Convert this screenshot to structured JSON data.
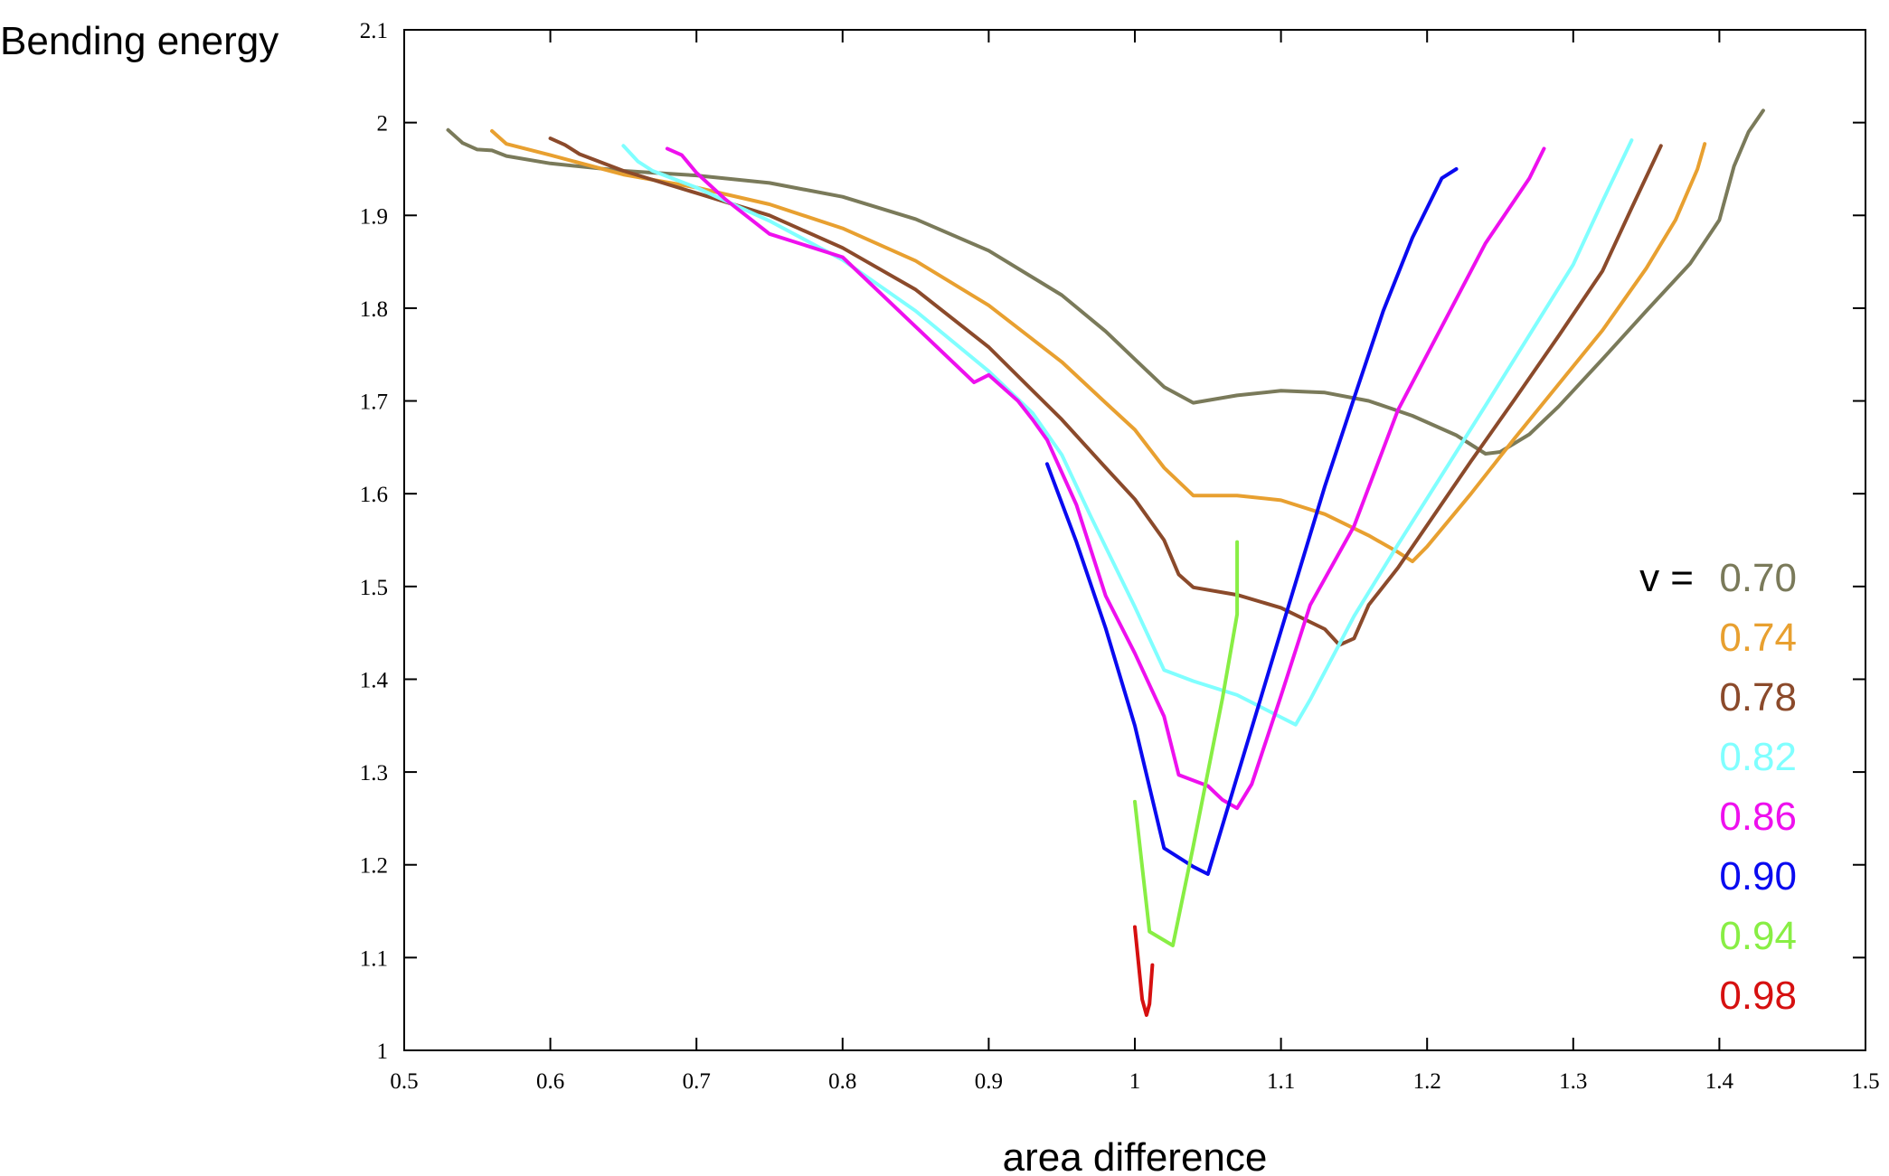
{
  "chart_data": {
    "type": "line",
    "title": "",
    "xlabel": "area difference",
    "ylabel": "Bending energy",
    "xlim": [
      0.5,
      1.5
    ],
    "ylim": [
      1.0,
      2.1
    ],
    "x_ticks": [
      "0.5",
      "0.6",
      "0.7",
      "0.8",
      "0.9",
      "1",
      "1.1",
      "1.2",
      "1.3",
      "1.4",
      "1.5"
    ],
    "y_ticks": [
      "1",
      "1.1",
      "1.2",
      "1.3",
      "1.4",
      "1.5",
      "1.6",
      "1.7",
      "1.8",
      "1.9",
      "2",
      "2.1"
    ],
    "grid": false,
    "legend": {
      "placement": "right",
      "prefix": "v =",
      "entries": [
        "0.70",
        "0.74",
        "0.78",
        "0.82",
        "0.86",
        "0.90",
        "0.94",
        "0.98"
      ]
    },
    "series": [
      {
        "name": "0.70",
        "color": "#7a7a5a",
        "points": [
          [
            0.53,
            1.992
          ],
          [
            0.54,
            1.978
          ],
          [
            0.55,
            1.971
          ],
          [
            0.56,
            1.97
          ],
          [
            0.57,
            1.964
          ],
          [
            0.6,
            1.956
          ],
          [
            0.65,
            1.948
          ],
          [
            0.7,
            1.943
          ],
          [
            0.75,
            1.935
          ],
          [
            0.8,
            1.92
          ],
          [
            0.85,
            1.896
          ],
          [
            0.9,
            1.862
          ],
          [
            0.95,
            1.814
          ],
          [
            0.98,
            1.775
          ],
          [
            1.0,
            1.745
          ],
          [
            1.02,
            1.715
          ],
          [
            1.04,
            1.698
          ],
          [
            1.07,
            1.706
          ],
          [
            1.1,
            1.711
          ],
          [
            1.13,
            1.709
          ],
          [
            1.16,
            1.7
          ],
          [
            1.19,
            1.684
          ],
          [
            1.22,
            1.663
          ],
          [
            1.24,
            1.643
          ],
          [
            1.25,
            1.645
          ],
          [
            1.27,
            1.664
          ],
          [
            1.29,
            1.694
          ],
          [
            1.32,
            1.745
          ],
          [
            1.35,
            1.797
          ],
          [
            1.38,
            1.848
          ],
          [
            1.4,
            1.895
          ],
          [
            1.41,
            1.953
          ],
          [
            1.42,
            1.99
          ],
          [
            1.43,
            2.013
          ]
        ]
      },
      {
        "name": "0.74",
        "color": "#e8a030",
        "points": [
          [
            0.56,
            1.991
          ],
          [
            0.57,
            1.977
          ],
          [
            0.6,
            1.965
          ],
          [
            0.65,
            1.944
          ],
          [
            0.7,
            1.93
          ],
          [
            0.75,
            1.912
          ],
          [
            0.8,
            1.886
          ],
          [
            0.85,
            1.851
          ],
          [
            0.9,
            1.803
          ],
          [
            0.95,
            1.742
          ],
          [
            0.98,
            1.698
          ],
          [
            1.0,
            1.669
          ],
          [
            1.02,
            1.628
          ],
          [
            1.04,
            1.598
          ],
          [
            1.07,
            1.598
          ],
          [
            1.1,
            1.593
          ],
          [
            1.13,
            1.578
          ],
          [
            1.16,
            1.555
          ],
          [
            1.18,
            1.537
          ],
          [
            1.19,
            1.527
          ],
          [
            1.2,
            1.543
          ],
          [
            1.23,
            1.6
          ],
          [
            1.26,
            1.66
          ],
          [
            1.29,
            1.718
          ],
          [
            1.32,
            1.776
          ],
          [
            1.35,
            1.843
          ],
          [
            1.37,
            1.895
          ],
          [
            1.385,
            1.95
          ],
          [
            1.39,
            1.977
          ]
        ]
      },
      {
        "name": "0.78",
        "color": "#8b4a2b",
        "points": [
          [
            0.6,
            1.983
          ],
          [
            0.61,
            1.976
          ],
          [
            0.62,
            1.966
          ],
          [
            0.65,
            1.948
          ],
          [
            0.7,
            1.924
          ],
          [
            0.75,
            1.9
          ],
          [
            0.8,
            1.865
          ],
          [
            0.85,
            1.82
          ],
          [
            0.9,
            1.758
          ],
          [
            0.95,
            1.68
          ],
          [
            0.98,
            1.628
          ],
          [
            1.0,
            1.594
          ],
          [
            1.02,
            1.55
          ],
          [
            1.03,
            1.513
          ],
          [
            1.04,
            1.499
          ],
          [
            1.07,
            1.491
          ],
          [
            1.1,
            1.477
          ],
          [
            1.13,
            1.454
          ],
          [
            1.14,
            1.437
          ],
          [
            1.15,
            1.444
          ],
          [
            1.16,
            1.48
          ],
          [
            1.18,
            1.52
          ],
          [
            1.2,
            1.566
          ],
          [
            1.23,
            1.635
          ],
          [
            1.26,
            1.702
          ],
          [
            1.29,
            1.77
          ],
          [
            1.32,
            1.84
          ],
          [
            1.34,
            1.908
          ],
          [
            1.36,
            1.975
          ]
        ]
      },
      {
        "name": "0.82",
        "color": "#80ffff",
        "points": [
          [
            0.65,
            1.975
          ],
          [
            0.66,
            1.958
          ],
          [
            0.67,
            1.948
          ],
          [
            0.7,
            1.93
          ],
          [
            0.75,
            1.894
          ],
          [
            0.8,
            1.852
          ],
          [
            0.85,
            1.797
          ],
          [
            0.9,
            1.732
          ],
          [
            0.93,
            1.687
          ],
          [
            0.95,
            1.642
          ],
          [
            0.97,
            1.575
          ],
          [
            1.0,
            1.478
          ],
          [
            1.02,
            1.41
          ],
          [
            1.04,
            1.398
          ],
          [
            1.07,
            1.383
          ],
          [
            1.1,
            1.359
          ],
          [
            1.11,
            1.351
          ],
          [
            1.12,
            1.378
          ],
          [
            1.15,
            1.468
          ],
          [
            1.18,
            1.545
          ],
          [
            1.21,
            1.62
          ],
          [
            1.24,
            1.695
          ],
          [
            1.27,
            1.771
          ],
          [
            1.3,
            1.847
          ],
          [
            1.32,
            1.915
          ],
          [
            1.34,
            1.981
          ]
        ]
      },
      {
        "name": "0.86",
        "color": "#ee10ee",
        "points": [
          [
            0.68,
            1.972
          ],
          [
            0.69,
            1.965
          ],
          [
            0.7,
            1.946
          ],
          [
            0.72,
            1.917
          ],
          [
            0.75,
            1.88
          ],
          [
            0.8,
            1.855
          ],
          [
            0.85,
            1.78
          ],
          [
            0.89,
            1.72
          ],
          [
            0.9,
            1.728
          ],
          [
            0.92,
            1.7
          ],
          [
            0.93,
            1.68
          ],
          [
            0.94,
            1.658
          ],
          [
            0.96,
            1.588
          ],
          [
            0.98,
            1.49
          ],
          [
            1.0,
            1.428
          ],
          [
            1.02,
            1.36
          ],
          [
            1.03,
            1.297
          ],
          [
            1.05,
            1.285
          ],
          [
            1.06,
            1.27
          ],
          [
            1.07,
            1.261
          ],
          [
            1.08,
            1.287
          ],
          [
            1.1,
            1.382
          ],
          [
            1.12,
            1.48
          ],
          [
            1.15,
            1.565
          ],
          [
            1.18,
            1.69
          ],
          [
            1.21,
            1.78
          ],
          [
            1.24,
            1.87
          ],
          [
            1.27,
            1.94
          ],
          [
            1.28,
            1.972
          ]
        ]
      },
      {
        "name": "0.90",
        "color": "#0a0af0",
        "points": [
          [
            0.94,
            1.632
          ],
          [
            0.96,
            1.548
          ],
          [
            0.98,
            1.455
          ],
          [
            1.0,
            1.35
          ],
          [
            1.02,
            1.218
          ],
          [
            1.04,
            1.198
          ],
          [
            1.05,
            1.19
          ],
          [
            1.07,
            1.295
          ],
          [
            1.1,
            1.452
          ],
          [
            1.13,
            1.608
          ],
          [
            1.15,
            1.703
          ],
          [
            1.17,
            1.797
          ],
          [
            1.19,
            1.876
          ],
          [
            1.21,
            1.94
          ],
          [
            1.22,
            1.95
          ]
        ]
      },
      {
        "name": "0.94",
        "color": "#88ee44",
        "points": [
          [
            1.0,
            1.268
          ],
          [
            1.01,
            1.128
          ],
          [
            1.026,
            1.113
          ],
          [
            1.04,
            1.22
          ],
          [
            1.05,
            1.3
          ],
          [
            1.06,
            1.38
          ],
          [
            1.07,
            1.47
          ],
          [
            1.07,
            1.548
          ]
        ]
      },
      {
        "name": "0.98",
        "color": "#d61010",
        "points": [
          [
            1.0,
            1.133
          ],
          [
            1.005,
            1.055
          ],
          [
            1.008,
            1.038
          ],
          [
            1.01,
            1.05
          ],
          [
            1.012,
            1.092
          ]
        ]
      }
    ]
  }
}
